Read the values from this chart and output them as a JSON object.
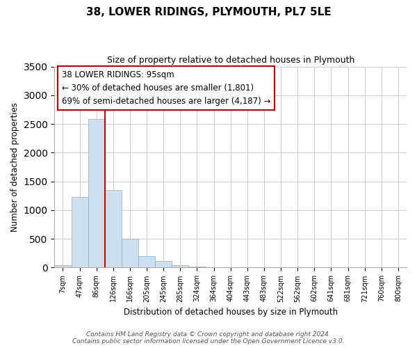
{
  "title": "38, LOWER RIDINGS, PLYMOUTH, PL7 5LE",
  "subtitle": "Size of property relative to detached houses in Plymouth",
  "xlabel": "Distribution of detached houses by size in Plymouth",
  "ylabel": "Number of detached properties",
  "bar_labels": [
    "7sqm",
    "47sqm",
    "86sqm",
    "126sqm",
    "166sqm",
    "205sqm",
    "245sqm",
    "285sqm",
    "324sqm",
    "364sqm",
    "404sqm",
    "443sqm",
    "483sqm",
    "522sqm",
    "562sqm",
    "602sqm",
    "641sqm",
    "681sqm",
    "721sqm",
    "760sqm",
    "800sqm"
  ],
  "bar_values": [
    45,
    1230,
    2590,
    1350,
    500,
    200,
    110,
    45,
    20,
    5,
    5,
    0,
    0,
    0,
    0,
    0,
    0,
    0,
    0,
    0,
    0
  ],
  "bar_color": "#cce0f0",
  "bar_edge_color": "#7aafd4",
  "ylim": [
    0,
    3500
  ],
  "yticks": [
    0,
    500,
    1000,
    1500,
    2000,
    2500,
    3000,
    3500
  ],
  "property_line_bar_index": 2,
  "property_line_color": "#cc0000",
  "annotation_title": "38 LOWER RIDINGS: 95sqm",
  "annotation_line1": "← 30% of detached houses are smaller (1,801)",
  "annotation_line2": "69% of semi-detached houses are larger (4,187) →",
  "annotation_box_color": "#ffffff",
  "annotation_box_edge": "#cc0000",
  "footer_line1": "Contains HM Land Registry data © Crown copyright and database right 2024.",
  "footer_line2": "Contains public sector information licensed under the Open Government Licence v3.0.",
  "background_color": "#ffffff",
  "grid_color": "#cccccc"
}
